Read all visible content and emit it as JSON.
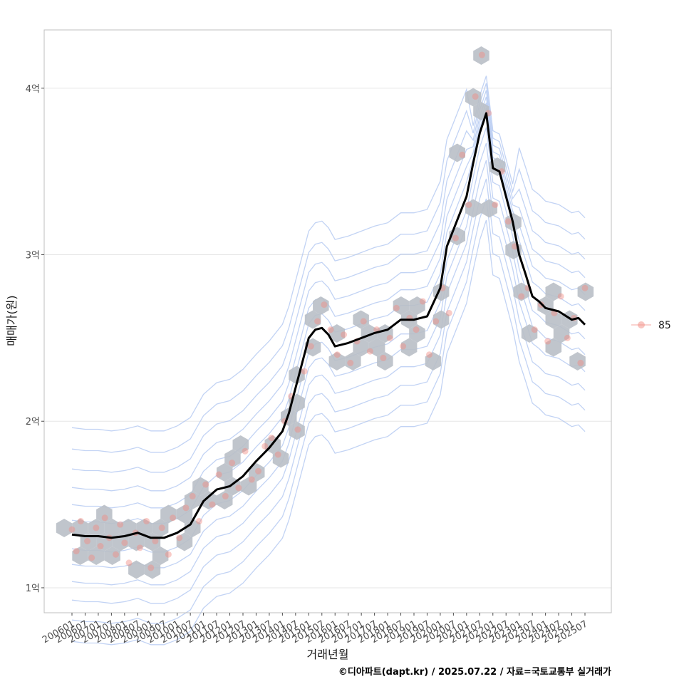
{
  "chart_data": {
    "type": "scatter",
    "xlabel": "거래년월",
    "ylabel": "매매가(원)",
    "caption": "©디아파트(dapt.kr) / 2025.07.22 / 자료=국토교통부 실거래가",
    "legend": {
      "position": "right",
      "entries": [
        "85"
      ]
    },
    "grid": true,
    "x_range": [
      "2006-01",
      "2025-07"
    ],
    "ylim": [
      0.85,
      4.35
    ],
    "y_unit": "억",
    "y_ticks": [
      1,
      2,
      3,
      4
    ],
    "y_tick_labels": [
      "1억",
      "2억",
      "3억",
      "4억"
    ],
    "x_tick_labels": [
      "200601",
      "200607",
      "200701",
      "200707",
      "200801",
      "200807",
      "200901",
      "200907",
      "201001",
      "201007",
      "201101",
      "201107",
      "201201",
      "201207",
      "201301",
      "201307",
      "201401",
      "201407",
      "201501",
      "201507",
      "201601",
      "201607",
      "201701",
      "201707",
      "201801",
      "201807",
      "201901",
      "201907",
      "202001",
      "202007",
      "202101",
      "202107",
      "202201",
      "202207",
      "202301",
      "202307",
      "202401",
      "202407",
      "202501",
      "202507"
    ],
    "colors": {
      "points": "#f28b82",
      "trend": "#000000",
      "hex": "#b9bfc6",
      "hex_light": "#c9dbe9",
      "contour": "#aec4f0",
      "grid": "#e5e5e5",
      "panel_border": "#bfbfbf"
    },
    "trend_series": {
      "x": [
        "2006-01",
        "2006-07",
        "2007-01",
        "2007-07",
        "2008-01",
        "2008-07",
        "2009-01",
        "2009-07",
        "2010-01",
        "2010-07",
        "2011-01",
        "2011-07",
        "2012-01",
        "2012-07",
        "2013-01",
        "2013-07",
        "2014-01",
        "2014-04",
        "2014-07",
        "2014-10",
        "2015-01",
        "2015-04",
        "2015-07",
        "2015-10",
        "2016-01",
        "2016-07",
        "2017-01",
        "2017-07",
        "2018-01",
        "2018-07",
        "2019-01",
        "2019-07",
        "2020-01",
        "2020-04",
        "2020-07",
        "2020-10",
        "2021-01",
        "2021-04",
        "2021-07",
        "2021-10",
        "2022-01",
        "2022-04",
        "2022-07",
        "2022-10",
        "2023-01",
        "2023-04",
        "2023-07",
        "2023-10",
        "2024-01",
        "2024-07",
        "2025-01",
        "2025-04",
        "2025-07"
      ],
      "y": [
        1.32,
        1.31,
        1.31,
        1.3,
        1.31,
        1.33,
        1.3,
        1.3,
        1.33,
        1.38,
        1.52,
        1.59,
        1.61,
        1.67,
        1.76,
        1.84,
        1.94,
        2.05,
        2.2,
        2.35,
        2.5,
        2.55,
        2.56,
        2.52,
        2.45,
        2.47,
        2.5,
        2.53,
        2.55,
        2.61,
        2.61,
        2.63,
        2.8,
        3.05,
        3.15,
        3.25,
        3.35,
        3.55,
        3.73,
        3.85,
        3.52,
        3.5,
        3.35,
        3.2,
        3.0,
        2.88,
        2.75,
        2.72,
        2.68,
        2.66,
        2.61,
        2.62,
        2.58
      ]
    },
    "scatter_points": {
      "x": [
        "2006-01",
        "2006-03",
        "2006-05",
        "2006-08",
        "2006-10",
        "2006-12",
        "2007-02",
        "2007-04",
        "2007-06",
        "2007-09",
        "2007-11",
        "2008-01",
        "2008-03",
        "2008-06",
        "2008-08",
        "2008-11",
        "2009-01",
        "2009-03",
        "2009-06",
        "2009-09",
        "2009-11",
        "2010-02",
        "2010-05",
        "2010-08",
        "2010-11",
        "2011-02",
        "2011-05",
        "2011-08",
        "2011-11",
        "2012-02",
        "2012-05",
        "2012-08",
        "2012-11",
        "2013-02",
        "2013-05",
        "2013-08",
        "2013-11",
        "2014-02",
        "2014-05",
        "2014-08",
        "2014-11",
        "2015-02",
        "2015-05",
        "2015-08",
        "2015-11",
        "2016-02",
        "2016-05",
        "2016-08",
        "2016-11",
        "2017-02",
        "2017-05",
        "2017-08",
        "2017-11",
        "2018-02",
        "2018-05",
        "2018-08",
        "2018-11",
        "2019-02",
        "2019-05",
        "2019-08",
        "2019-11",
        "2020-02",
        "2020-05",
        "2020-08",
        "2020-11",
        "2021-02",
        "2021-05",
        "2021-08",
        "2021-11",
        "2022-02",
        "2022-05",
        "2022-08",
        "2022-11",
        "2023-02",
        "2023-05",
        "2023-08",
        "2023-11",
        "2024-02",
        "2024-05",
        "2024-08",
        "2024-11",
        "2025-02",
        "2025-05",
        "2025-07"
      ],
      "y": [
        1.35,
        1.22,
        1.4,
        1.28,
        1.18,
        1.36,
        1.25,
        1.42,
        1.3,
        1.2,
        1.38,
        1.27,
        1.15,
        1.33,
        1.24,
        1.4,
        1.12,
        1.28,
        1.36,
        1.2,
        1.42,
        1.3,
        1.48,
        1.55,
        1.4,
        1.62,
        1.5,
        1.68,
        1.55,
        1.75,
        1.6,
        1.82,
        1.65,
        1.7,
        1.85,
        1.9,
        1.8,
        2.0,
        2.15,
        1.95,
        2.3,
        2.45,
        2.6,
        2.7,
        2.55,
        2.4,
        2.52,
        2.35,
        2.48,
        2.6,
        2.42,
        2.55,
        2.38,
        2.5,
        2.68,
        2.45,
        2.62,
        2.55,
        2.72,
        2.4,
        2.6,
        2.8,
        2.65,
        3.1,
        3.6,
        3.3,
        3.95,
        4.2,
        3.85,
        3.3,
        3.5,
        3.2,
        3.05,
        2.75,
        2.8,
        2.55,
        2.7,
        2.48,
        2.65,
        2.75,
        2.5,
        2.62,
        2.35,
        2.8
      ]
    }
  }
}
